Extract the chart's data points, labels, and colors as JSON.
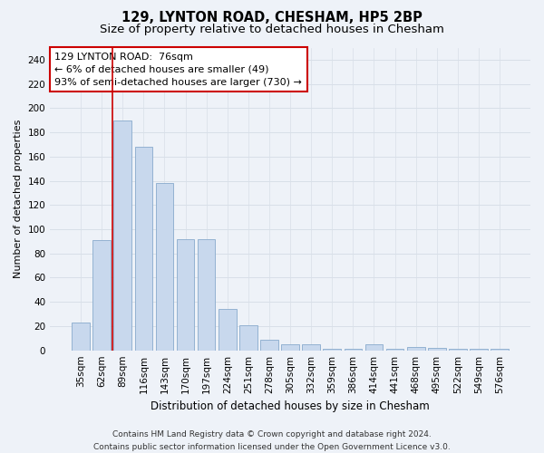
{
  "title": "129, LYNTON ROAD, CHESHAM, HP5 2BP",
  "subtitle": "Size of property relative to detached houses in Chesham",
  "xlabel": "Distribution of detached houses by size in Chesham",
  "ylabel": "Number of detached properties",
  "categories": [
    "35sqm",
    "62sqm",
    "89sqm",
    "116sqm",
    "143sqm",
    "170sqm",
    "197sqm",
    "224sqm",
    "251sqm",
    "278sqm",
    "305sqm",
    "332sqm",
    "359sqm",
    "386sqm",
    "414sqm",
    "441sqm",
    "468sqm",
    "495sqm",
    "522sqm",
    "549sqm",
    "576sqm"
  ],
  "values": [
    23,
    91,
    190,
    168,
    138,
    92,
    92,
    34,
    21,
    9,
    5,
    5,
    1,
    1,
    5,
    1,
    3,
    2,
    1,
    1,
    1
  ],
  "bar_color": "#c8d8ed",
  "bar_edge_color": "#88aacc",
  "vline_color": "#cc0000",
  "annotation_text": "129 LYNTON ROAD:  76sqm\n← 6% of detached houses are smaller (49)\n93% of semi-detached houses are larger (730) →",
  "annotation_box_color": "#ffffff",
  "annotation_box_edge_color": "#cc0000",
  "ylim": [
    0,
    250
  ],
  "yticks": [
    0,
    20,
    40,
    60,
    80,
    100,
    120,
    140,
    160,
    180,
    200,
    220,
    240
  ],
  "grid_color": "#d8dfe8",
  "background_color": "#eef2f8",
  "footer_line1": "Contains HM Land Registry data © Crown copyright and database right 2024.",
  "footer_line2": "Contains public sector information licensed under the Open Government Licence v3.0.",
  "title_fontsize": 10.5,
  "subtitle_fontsize": 9.5,
  "xlabel_fontsize": 8.5,
  "ylabel_fontsize": 8,
  "tick_fontsize": 7.5,
  "annotation_fontsize": 8,
  "footer_fontsize": 6.5,
  "vline_xindex": 1.5
}
